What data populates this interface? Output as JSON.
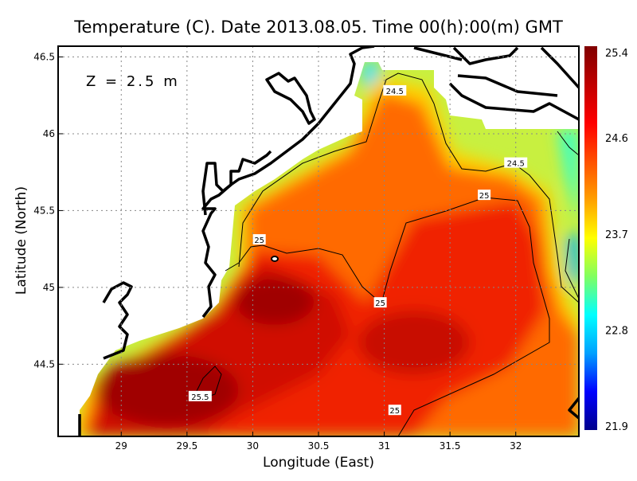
{
  "chart_data": {
    "type": "heatmap",
    "title": "Temperature (C). Date 2013.08.05. Time 00(h):00(m) GMT",
    "xlabel": "Longitude (East)",
    "ylabel": "Latitude (North)",
    "annotation": "Z = 2.5 m",
    "xlim": [
      28.52,
      32.48
    ],
    "ylim": [
      44.03,
      46.57
    ],
    "grid": true,
    "x_ticks": [
      29,
      29.5,
      30,
      30.5,
      31,
      31.5,
      32
    ],
    "x_tick_labels": [
      "29",
      "29.5",
      "30",
      "30.5",
      "31",
      "31.5",
      "32"
    ],
    "y_ticks": [
      44.5,
      45,
      45.5,
      46,
      46.5
    ],
    "y_tick_labels": [
      "44.5",
      "45",
      "45.5",
      "46",
      "46.5"
    ],
    "colorbar": {
      "min": 21.9,
      "max": 25.4,
      "ticks": [
        25.4,
        24.6,
        23.7,
        22.8,
        21.9
      ],
      "tick_labels": [
        "25.4",
        "24.6",
        "23.7",
        "22.8",
        "21.9"
      ],
      "colormap": [
        "#00008b",
        "#0000ff",
        "#00a0ff",
        "#00ffff",
        "#80ff60",
        "#ffff00",
        "#ffa000",
        "#ff5000",
        "#ff0000",
        "#c00000",
        "#800000"
      ]
    },
    "contour_labels": [
      {
        "text": "24.5",
        "lon": 31.08,
        "lat": 46.28
      },
      {
        "text": "24.5",
        "lon": 32.0,
        "lat": 45.81
      },
      {
        "text": "25",
        "lon": 31.76,
        "lat": 45.6
      },
      {
        "text": "25",
        "lon": 30.05,
        "lat": 45.31
      },
      {
        "text": "25",
        "lon": 30.97,
        "lat": 44.9
      },
      {
        "text": "25",
        "lon": 31.08,
        "lat": 44.2
      },
      {
        "text": "25.5",
        "lon": 29.6,
        "lat": 44.29
      }
    ]
  }
}
